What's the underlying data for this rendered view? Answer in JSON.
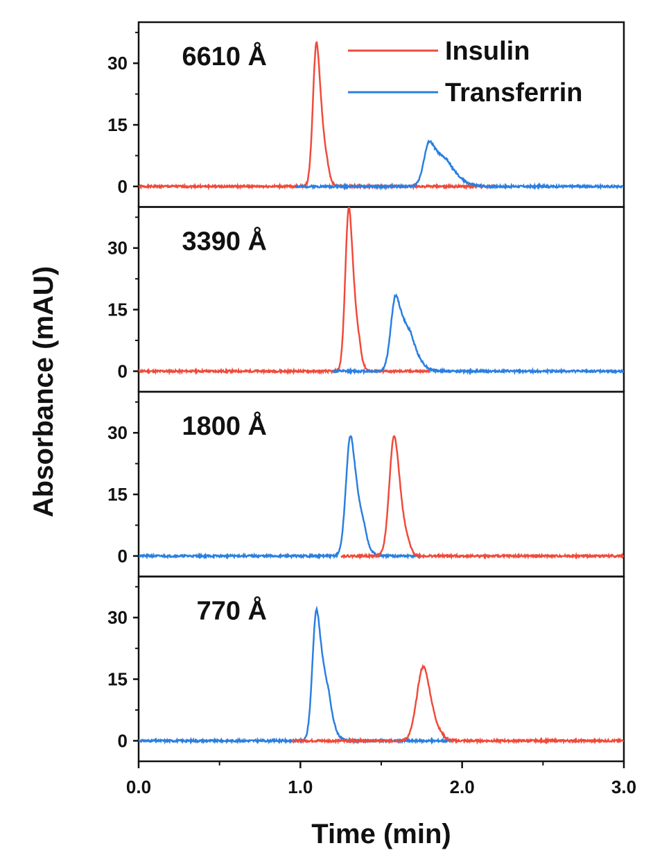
{
  "chart_data": {
    "type": "line",
    "xlabel": "Time (min)",
    "ylabel": "Absorbance (mAU)",
    "xlim": [
      0,
      3.0
    ],
    "ylim": [
      -5,
      40
    ],
    "xticks": [
      "0.0",
      "1.0",
      "2.0",
      "3.0"
    ],
    "xtick_values": [
      0,
      1,
      2,
      3
    ],
    "yticks": [
      "0",
      "15",
      "30"
    ],
    "ytick_values": [
      0,
      15,
      30
    ],
    "legend": {
      "placement": "top-right of top panel",
      "entries": [
        "Insulin",
        "Transferrin"
      ]
    },
    "colors": {
      "Insulin": "#f04a3a",
      "Transferrin": "#2a7fe0"
    },
    "panels": [
      {
        "label": "6610 Å",
        "series": [
          {
            "name": "Insulin",
            "peak_time": 1.1,
            "peak_height": 35,
            "sigma": 0.022,
            "tail": 0.015,
            "range": [
              0,
              2.2
            ]
          },
          {
            "name": "Transferrin",
            "peak_time": 1.8,
            "peak_height": 11,
            "sigma": 0.035,
            "tail": 0.07,
            "range": [
              0.97,
              3.0
            ]
          }
        ]
      },
      {
        "label": "3390 Å",
        "series": [
          {
            "name": "Insulin",
            "peak_time": 1.3,
            "peak_height": 40,
            "sigma": 0.022,
            "tail": 0.015,
            "range": [
              0,
              1.8
            ]
          },
          {
            "name": "Transferrin",
            "peak_time": 1.59,
            "peak_height": 18.5,
            "sigma": 0.03,
            "tail": 0.05,
            "range": [
              1.2,
              3.0
            ]
          }
        ]
      },
      {
        "label": "1800 Å",
        "series": [
          {
            "name": "Transferrin",
            "peak_time": 1.31,
            "peak_height": 29.3,
            "sigma": 0.028,
            "tail": 0.025,
            "range": [
              0,
              1.75
            ]
          },
          {
            "name": "Insulin",
            "peak_time": 1.58,
            "peak_height": 29.3,
            "sigma": 0.03,
            "tail": 0.015,
            "range": [
              1.25,
              3.0
            ]
          }
        ]
      },
      {
        "label": "770 Å",
        "series": [
          {
            "name": "Transferrin",
            "peak_time": 1.1,
            "peak_height": 32,
            "sigma": 0.025,
            "tail": 0.03,
            "range": [
              0,
              1.93
            ]
          },
          {
            "name": "Insulin",
            "peak_time": 1.76,
            "peak_height": 18,
            "sigma": 0.04,
            "tail": 0.015,
            "range": [
              0.95,
              3.0
            ]
          }
        ]
      }
    ]
  }
}
